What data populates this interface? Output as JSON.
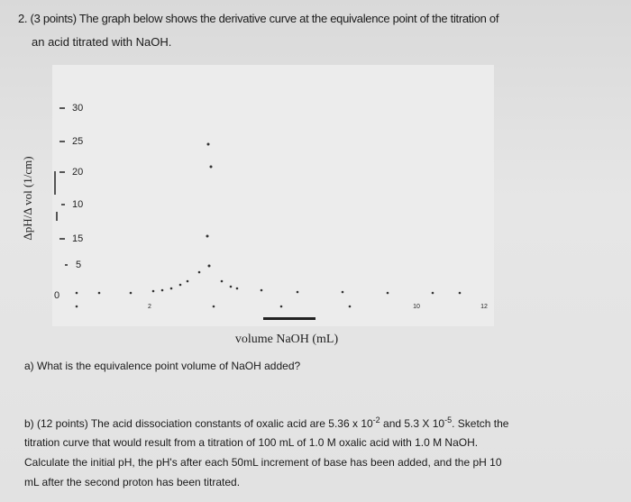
{
  "question_2": {
    "heading": "2. (3 points) The graph below shows the derivative curve at the equivalence point of the titration of",
    "heading_cont": "an acid titrated with NaOH.",
    "figure": {
      "y_axis_label": "ΔpH/Δ vol (1/cm)",
      "x_axis_label": "volume NaOH (mL)",
      "y_labels": [
        "30",
        "25",
        "20",
        "10",
        "15",
        "5",
        "0"
      ],
      "x_labels": [
        "2",
        "10",
        "12"
      ]
    },
    "part_a": "a) What is the equivalence point volume of NaOH added?",
    "part_b": {
      "line_1_start": "b) (12 points) The acid dissociation constants of oxalic acid are 5.36 x 10",
      "sup_1": "-2",
      "line_1_mid": " and 5.3 X 10",
      "sup_2": "-5",
      "line_1_end": ". Sketch the",
      "line_2": "titration curve that would result from a titration of 100 mL of 1.0 M oxalic acid with 1.0 M NaOH.",
      "line_3": "Calculate the initial pH, the pH's after each 50mL increment of base has been added, and the pH 10",
      "line_4": "mL after the second proton has been titrated."
    }
  }
}
